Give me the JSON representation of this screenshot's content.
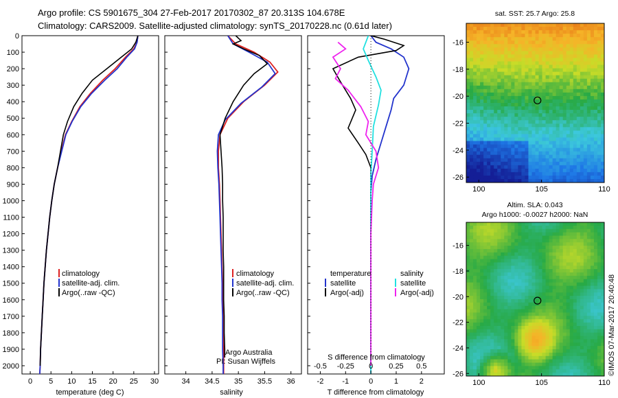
{
  "header": {
    "title_line1": "Argo profile: CS 5901675_304 27-Feb-2017 20170302_87 20.313S 104.678E",
    "title_line2": "Climatology: CARS2009. Satellite-adjusted climatology: synTS_20170228.nc (0.61d later)"
  },
  "side_label": "©IMOS 07-Mar-2017 20:40:48",
  "colors": {
    "climatology": "#dd2020",
    "satellite": "#2233cc",
    "argo": "#000000",
    "sat_salinity": "#20e0e0",
    "argo_salinity": "#ee22ee"
  },
  "chart_data": [
    {
      "type": "line",
      "panel": "temperature",
      "xlabel": "temperature (deg C)",
      "ylim": [
        2050,
        0
      ],
      "xlim": [
        -2,
        31
      ],
      "xticks": [
        0,
        5,
        10,
        15,
        20,
        25,
        30
      ],
      "yticks": [
        0,
        100,
        200,
        300,
        400,
        500,
        600,
        700,
        800,
        900,
        1000,
        1100,
        1200,
        1300,
        1400,
        1500,
        1600,
        1700,
        1800,
        1900,
        2000
      ],
      "legend": [
        "climatology",
        "satellite-adj. clim.",
        "Argo(..raw -QC)"
      ],
      "series": [
        {
          "name": "climatology",
          "color": "#dd2020",
          "points": [
            [
              26,
              0
            ],
            [
              25.8,
              40
            ],
            [
              25,
              80
            ],
            [
              23,
              130
            ],
            [
              20.5,
              200
            ],
            [
              17.5,
              270
            ],
            [
              14.5,
              350
            ],
            [
              12,
              430
            ],
            [
              10,
              520
            ],
            [
              8.5,
              600
            ],
            [
              7.5,
              700
            ],
            [
              6.6,
              800
            ],
            [
              5.8,
              900
            ],
            [
              5.2,
              1000
            ],
            [
              4.7,
              1100
            ],
            [
              4.3,
              1200
            ],
            [
              3.9,
              1300
            ],
            [
              3.6,
              1400
            ],
            [
              3.3,
              1500
            ],
            [
              3.1,
              1600
            ],
            [
              2.9,
              1700
            ],
            [
              2.7,
              1800
            ],
            [
              2.5,
              1900
            ],
            [
              2.4,
              2000
            ],
            [
              2.3,
              2050
            ]
          ]
        },
        {
          "name": "satellite-adj. clim.",
          "color": "#2233cc",
          "points": [
            [
              26,
              0
            ],
            [
              25.8,
              40
            ],
            [
              25.2,
              80
            ],
            [
              23.3,
              130
            ],
            [
              21,
              200
            ],
            [
              18,
              270
            ],
            [
              14.8,
              350
            ],
            [
              12.2,
              430
            ],
            [
              10.1,
              520
            ],
            [
              8.6,
              600
            ],
            [
              7.6,
              700
            ],
            [
              6.6,
              800
            ],
            [
              5.8,
              900
            ],
            [
              5.2,
              1000
            ],
            [
              4.7,
              1100
            ],
            [
              4.3,
              1200
            ],
            [
              3.9,
              1300
            ],
            [
              3.6,
              1400
            ],
            [
              3.3,
              1500
            ],
            [
              3.1,
              1600
            ],
            [
              2.9,
              1700
            ],
            [
              2.7,
              1800
            ],
            [
              2.5,
              1900
            ],
            [
              2.4,
              2000
            ],
            [
              2.3,
              2050
            ]
          ]
        },
        {
          "name": "Argo(..raw -QC)",
          "color": "#000000",
          "points": [
            [
              26,
              0
            ],
            [
              25.5,
              40
            ],
            [
              24.5,
              80
            ],
            [
              22,
              130
            ],
            [
              18.5,
              200
            ],
            [
              15,
              270
            ],
            [
              12.5,
              350
            ],
            [
              10.5,
              430
            ],
            [
              9,
              520
            ],
            [
              8,
              600
            ],
            [
              7.3,
              700
            ],
            [
              6.6,
              800
            ],
            [
              5.8,
              900
            ],
            [
              5.2,
              1000
            ],
            [
              4.7,
              1100
            ],
            [
              4.3,
              1200
            ],
            [
              3.9,
              1300
            ],
            [
              3.6,
              1400
            ],
            [
              3.3,
              1500
            ],
            [
              3.1,
              1600
            ],
            [
              2.9,
              1700
            ],
            [
              2.7,
              1800
            ],
            [
              2.5,
              1900
            ],
            [
              2.4,
              2000
            ]
          ]
        }
      ]
    },
    {
      "type": "line",
      "panel": "salinity",
      "xlabel": "salinity",
      "ylim": [
        2050,
        0
      ],
      "xlim": [
        33.6,
        36.2
      ],
      "xticks": [
        34,
        34.5,
        35,
        35.5,
        36
      ],
      "xtick_labels": [
        "34",
        "34.5",
        "35",
        "35.5",
        "36"
      ],
      "legend": [
        "climatology",
        "satellite-adj. clim.",
        "Argo(..raw -QC)"
      ],
      "annotations": [
        "Argo Australia",
        "PI: Susan Wijffels"
      ],
      "series": [
        {
          "name": "climatology",
          "color": "#dd2020",
          "points": [
            [
              34.8,
              0
            ],
            [
              34.95,
              50
            ],
            [
              35.3,
              100
            ],
            [
              35.6,
              160
            ],
            [
              35.75,
              220
            ],
            [
              35.5,
              300
            ],
            [
              35.1,
              400
            ],
            [
              34.8,
              500
            ],
            [
              34.65,
              600
            ],
            [
              34.62,
              700
            ],
            [
              34.62,
              800
            ],
            [
              34.64,
              900
            ],
            [
              34.65,
              1000
            ],
            [
              34.66,
              1100
            ],
            [
              34.67,
              1200
            ],
            [
              34.68,
              1300
            ],
            [
              34.69,
              1400
            ],
            [
              34.7,
              1500
            ],
            [
              34.7,
              1600
            ],
            [
              34.71,
              1700
            ],
            [
              34.71,
              1800
            ],
            [
              34.72,
              1900
            ],
            [
              34.72,
              2000
            ],
            [
              34.72,
              2050
            ]
          ]
        },
        {
          "name": "satellite-adj. clim.",
          "color": "#2233cc",
          "points": [
            [
              34.8,
              0
            ],
            [
              34.9,
              50
            ],
            [
              35.2,
              100
            ],
            [
              35.55,
              160
            ],
            [
              35.7,
              230
            ],
            [
              35.45,
              310
            ],
            [
              35.05,
              410
            ],
            [
              34.75,
              510
            ],
            [
              34.62,
              600
            ],
            [
              34.6,
              700
            ],
            [
              34.61,
              800
            ],
            [
              34.63,
              900
            ],
            [
              34.64,
              1000
            ],
            [
              34.65,
              1100
            ],
            [
              34.66,
              1200
            ],
            [
              34.67,
              1300
            ],
            [
              34.68,
              1400
            ],
            [
              34.69,
              1500
            ],
            [
              34.69,
              1600
            ],
            [
              34.7,
              1700
            ],
            [
              34.7,
              1800
            ],
            [
              34.7,
              1900
            ],
            [
              34.71,
              2000
            ],
            [
              34.71,
              2050
            ]
          ]
        },
        {
          "name": "Argo(..raw -QC)",
          "color": "#000000",
          "points": [
            [
              34.95,
              0
            ],
            [
              35.05,
              30
            ],
            [
              34.9,
              50
            ],
            [
              35.1,
              80
            ],
            [
              35.4,
              120
            ],
            [
              35.55,
              170
            ],
            [
              35.3,
              230
            ],
            [
              35.1,
              300
            ],
            [
              34.9,
              400
            ],
            [
              34.75,
              500
            ],
            [
              34.65,
              600
            ],
            [
              34.67,
              700
            ],
            [
              34.69,
              800
            ],
            [
              34.7,
              900
            ],
            [
              34.7,
              1000
            ],
            [
              34.71,
              1100
            ],
            [
              34.71,
              1200
            ],
            [
              34.71,
              1300
            ],
            [
              34.72,
              1400
            ],
            [
              34.72,
              1500
            ],
            [
              34.72,
              1600
            ],
            [
              34.73,
              1700
            ],
            [
              34.73,
              1800
            ],
            [
              34.74,
              1900
            ],
            [
              34.74,
              1950
            ]
          ]
        }
      ]
    },
    {
      "type": "line",
      "panel": "difference",
      "xlabel_top": "S difference from climatology",
      "xlabel": "T difference from climatology",
      "ylim": [
        2050,
        0
      ],
      "xlim": [
        -2.5,
        2.9
      ],
      "xticks": [
        -2,
        -1,
        0,
        1,
        2
      ],
      "sticks_labels": [
        "-0.5",
        "-0.25",
        "0",
        "0.25",
        "0.5"
      ],
      "legend_temperature": [
        "temperature",
        "satellite",
        "Argo(-adj)"
      ],
      "legend_salinity": [
        "salinity",
        "satellite",
        "Argo(-adj)"
      ],
      "series": [
        {
          "name": "satellite",
          "group": "temperature",
          "color": "#2233cc",
          "points": [
            [
              0,
              0
            ],
            [
              0.2,
              40
            ],
            [
              0.8,
              80
            ],
            [
              1.3,
              130
            ],
            [
              1.5,
              200
            ],
            [
              1.3,
              300
            ],
            [
              0.9,
              380
            ],
            [
              0.8,
              450
            ],
            [
              0.6,
              550
            ],
            [
              0.4,
              650
            ],
            [
              0.2,
              750
            ],
            [
              0.05,
              850
            ],
            [
              0,
              950
            ],
            [
              0,
              2050
            ]
          ]
        },
        {
          "name": "Argo(-adj)",
          "group": "temperature",
          "color": "#000000",
          "points": [
            [
              0,
              0
            ],
            [
              0.5,
              20
            ],
            [
              1.3,
              60
            ],
            [
              1.0,
              90
            ],
            [
              -0.5,
              130
            ],
            [
              -1.5,
              200
            ],
            [
              -1.2,
              280
            ],
            [
              -0.8,
              380
            ],
            [
              -0.6,
              450
            ],
            [
              -0.9,
              560
            ],
            [
              -0.5,
              650
            ],
            [
              -0.2,
              720
            ],
            [
              0,
              800
            ],
            [
              0,
              900
            ],
            [
              0,
              2000
            ]
          ]
        },
        {
          "name": "satellite",
          "group": "salinity",
          "color": "#20e0e0",
          "points": [
            [
              -0.1,
              0
            ],
            [
              -0.3,
              80
            ],
            [
              -0.1,
              150
            ],
            [
              0.2,
              250
            ],
            [
              0.4,
              330
            ],
            [
              0.3,
              420
            ],
            [
              0.1,
              550
            ],
            [
              0.05,
              700
            ],
            [
              0,
              850
            ],
            [
              0,
              2050
            ]
          ]
        },
        {
          "name": "Argo(-adj)",
          "group": "salinity",
          "color": "#ee22ee",
          "points": [
            [
              -1.3,
              40
            ],
            [
              -1.0,
              80
            ],
            [
              -1.5,
              130
            ],
            [
              -1.2,
              200
            ],
            [
              -1.4,
              260
            ],
            [
              -0.9,
              330
            ],
            [
              -0.4,
              430
            ],
            [
              -0.1,
              520
            ],
            [
              -0.2,
              600
            ],
            [
              0.2,
              700
            ],
            [
              0.3,
              800
            ],
            [
              0.1,
              900
            ],
            [
              0.05,
              1000
            ],
            [
              0,
              1200
            ],
            [
              0,
              1500
            ],
            [
              0,
              2000
            ]
          ]
        }
      ]
    },
    {
      "type": "heatmap",
      "panel": "sst_map",
      "title": "sat. SST: 25.7  Argo: 25.8",
      "xlim": [
        99,
        110
      ],
      "ylim": [
        -26.4,
        -14.6
      ],
      "xticks": [
        100,
        105,
        110
      ],
      "yticks": [
        -16,
        -18,
        -20,
        -22,
        -24,
        -26
      ],
      "marker": {
        "lon": 104.678,
        "lat": -20.313
      }
    },
    {
      "type": "heatmap",
      "panel": "sla_map",
      "title_line1": "Altim. SLA: 0.043",
      "title_line2": "Argo h1000: -0.0027 h2000: NaN",
      "xlim": [
        99,
        110
      ],
      "ylim": [
        -26.2,
        -14.2
      ],
      "xticks": [
        100,
        105,
        110
      ],
      "yticks": [
        -16,
        -18,
        -20,
        -22,
        -24,
        -26
      ],
      "marker": {
        "lon": 104.678,
        "lat": -20.313
      }
    }
  ]
}
